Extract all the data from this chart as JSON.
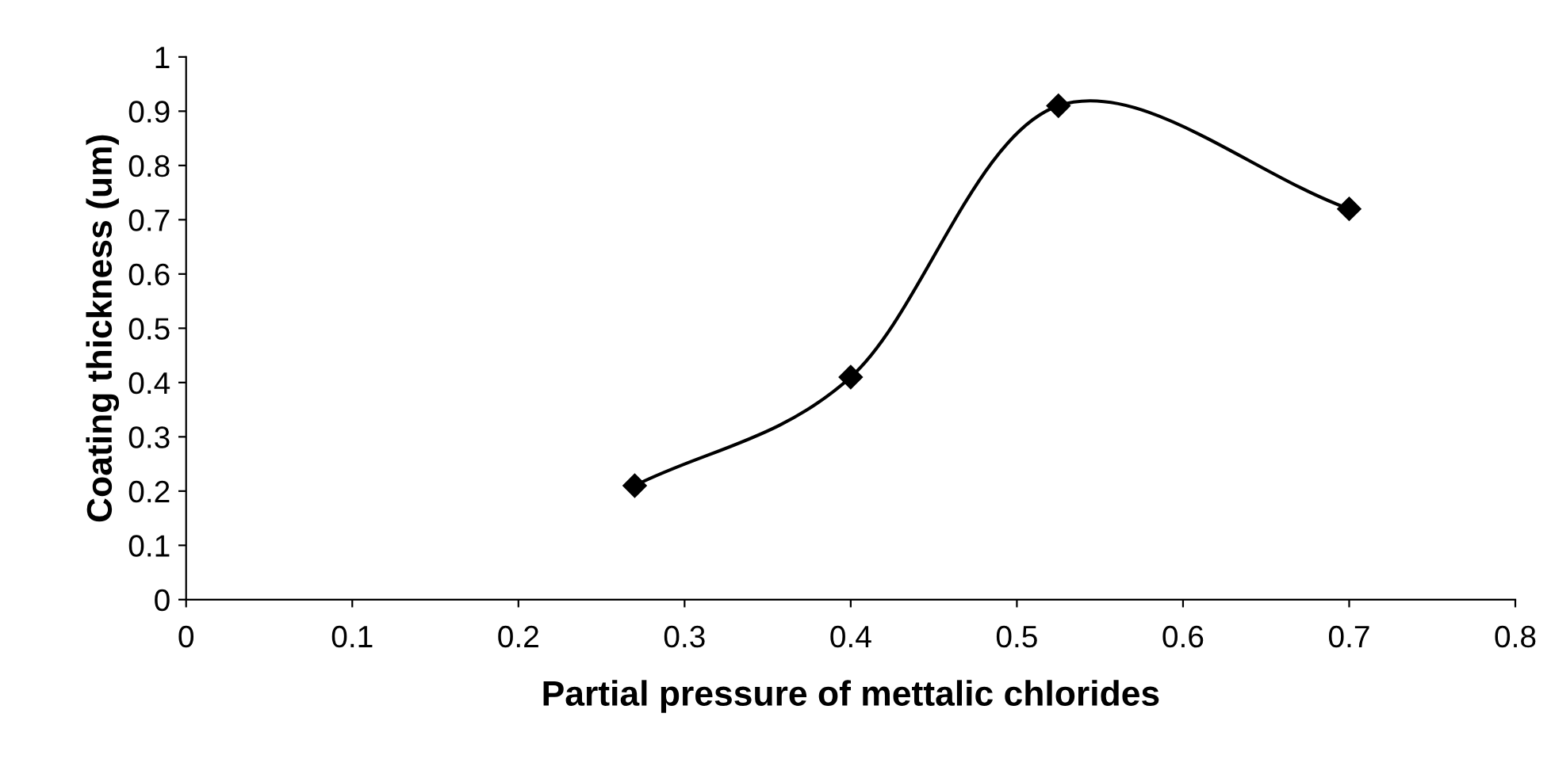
{
  "chart_data": {
    "type": "line",
    "xlabel": "Partial pressure of mettalic chlorides",
    "ylabel": "Coating thickness (um)",
    "x": [
      0.27,
      0.4,
      0.525,
      0.7
    ],
    "series": [
      {
        "color": "#000000",
        "values": [
          0.21,
          0.41,
          0.91,
          0.72
        ]
      }
    ],
    "xlim": [
      0,
      0.8
    ],
    "xticks": [
      0,
      0.1,
      0.2,
      0.3,
      0.4,
      0.5,
      0.6,
      0.7,
      0.8
    ],
    "ylim": [
      0,
      1
    ],
    "yticks": [
      0,
      0.1,
      0.2,
      0.3,
      0.4,
      0.5,
      0.6,
      0.7,
      0.8,
      0.9,
      1
    ],
    "marker": "diamond",
    "line_style": "solid",
    "grid": false
  }
}
